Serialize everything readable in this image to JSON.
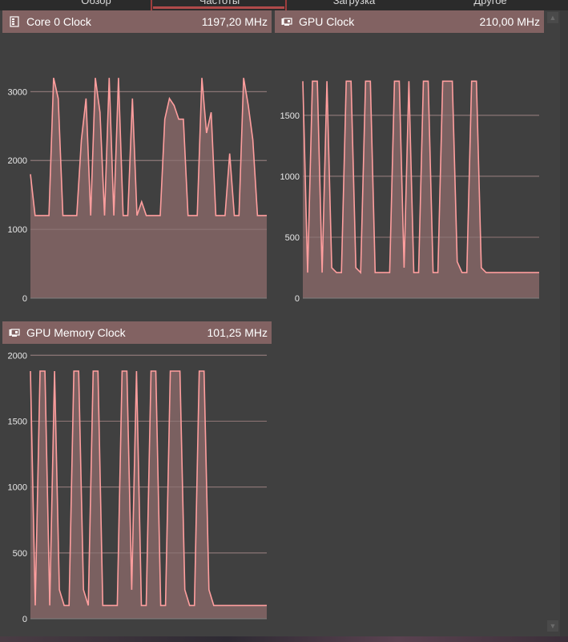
{
  "tabs": [
    {
      "label": "Обзор"
    },
    {
      "label": "Частоты"
    },
    {
      "label": "Загрузка"
    },
    {
      "label": "Другое"
    }
  ],
  "panels": [
    {
      "title": "Core 0 Clock",
      "value": "1197,20 MHz",
      "icon": "cpu-chip-icon"
    },
    {
      "title": "GPU Clock",
      "value": "210,00 MHz",
      "icon": "gpu-card-icon"
    },
    {
      "title": "GPU Memory Clock",
      "value": "101,25 MHz",
      "icon": "gpu-card-icon"
    }
  ],
  "colors": {
    "header_bg": "#826262",
    "area_fill": "#7a6060",
    "line": "#ff9e9e",
    "grid": "#808080",
    "tab_accent": "#b04a4a"
  },
  "chart_data": [
    {
      "type": "area",
      "ylim": [
        0,
        3400
      ],
      "yticks": [
        0,
        1000,
        2000,
        3000
      ],
      "values": [
        1800,
        1200,
        1200,
        1200,
        1200,
        3200,
        2900,
        1200,
        1200,
        1200,
        1200,
        2300,
        2900,
        1200,
        3200,
        2700,
        1200,
        3200,
        1200,
        3200,
        1200,
        1200,
        2900,
        1200,
        1400,
        1200,
        1200,
        1200,
        1200,
        2600,
        2900,
        2800,
        2600,
        2600,
        1200,
        1200,
        1200,
        3200,
        2400,
        2700,
        1200,
        1200,
        1200,
        2100,
        1200,
        1200,
        3200,
        2800,
        2300,
        1200,
        1200,
        1200
      ]
    },
    {
      "type": "area",
      "ylim": [
        0,
        1920
      ],
      "yticks": [
        0,
        500,
        1000,
        1500
      ],
      "values": [
        1780,
        210,
        1780,
        1780,
        210,
        1780,
        250,
        210,
        210,
        1780,
        1780,
        250,
        210,
        1780,
        1780,
        210,
        210,
        210,
        210,
        1780,
        1780,
        250,
        1780,
        210,
        210,
        1780,
        1780,
        210,
        210,
        1780,
        1780,
        1780,
        300,
        210,
        210,
        1780,
        1780,
        250,
        210,
        210,
        210,
        210,
        210,
        210,
        210,
        210,
        210,
        210,
        210,
        210
      ]
    },
    {
      "type": "area",
      "ylim": [
        0,
        2020
      ],
      "yticks": [
        0,
        500,
        1000,
        1500,
        2000
      ],
      "values": [
        1880,
        101,
        1880,
        1880,
        101,
        1880,
        220,
        101,
        101,
        1880,
        1880,
        220,
        101,
        1880,
        1880,
        101,
        101,
        101,
        101,
        1880,
        1880,
        220,
        1880,
        101,
        101,
        1880,
        1880,
        101,
        101,
        1880,
        1880,
        1880,
        220,
        101,
        101,
        1880,
        1880,
        220,
        101,
        101,
        101,
        101,
        101,
        101,
        101,
        101,
        101,
        101,
        101,
        101
      ]
    }
  ]
}
